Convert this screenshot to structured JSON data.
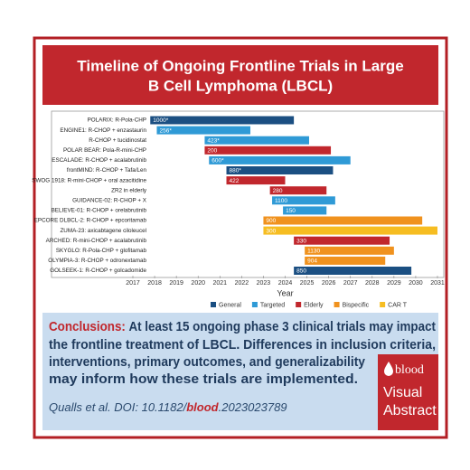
{
  "header": {
    "title_lines": [
      "Timeline of Ongoing Frontline Trials in Large",
      "B Cell Lymphoma (LBCL)"
    ]
  },
  "chart_data": {
    "type": "gantt",
    "xlabel": "Year",
    "xlim": [
      2017,
      2031
    ],
    "xticks": [
      2017,
      2018,
      2019,
      2020,
      2021,
      2022,
      2023,
      2024,
      2025,
      2026,
      2027,
      2028,
      2029,
      2030,
      2031
    ],
    "series": [
      {
        "name": "General",
        "color": "#1b4f82"
      },
      {
        "name": "Targeted",
        "color": "#2f9ad6"
      },
      {
        "name": "Elderly",
        "color": "#c1272d"
      },
      {
        "name": "Bispecific",
        "color": "#f0921e"
      },
      {
        "name": "CAR T",
        "color": "#f6bd22"
      }
    ],
    "categories": [
      "POLARIX: R-Pola-CHP",
      "ENGINE1: R-CHOP + enzastaurin",
      "R-CHOP + tucidinostat",
      "POLAR BEAR: Pola-R-mini-CHP",
      "ESCALADE: R-CHOP + acalabrutinib",
      "frontMIND: R-CHOP + Tafa/Len",
      "SWOG 1918: R-mini-CHOP + oral azacitidine",
      "ZR2 in elderly",
      "GUIDANCE-02: R-CHOP + X",
      "BELIEVE-01: R-CHOP + orelabrutinib",
      "EPCORE DLBCL-2: R-CHOP + epcoritamab",
      "ZUMA-23: axicabtagene ciloleucel",
      "ARCHED: R-mini-CHOP + acalabrutinib",
      "SKYGLO: R-Pola-CHP + glofitamab",
      "OLYMPIA-3: R-CHOP + odronextamab",
      "GOLSEEK-1: R-CHOP + golcadomide"
    ],
    "groups": [
      "General",
      "Targeted",
      "Targeted",
      "Elderly",
      "Targeted",
      "General",
      "Elderly",
      "Elderly",
      "Targeted",
      "Targeted",
      "Bispecific",
      "CAR T",
      "Elderly",
      "Bispecific",
      "Bispecific",
      "General"
    ],
    "start": [
      2017.8,
      2018.1,
      2020.3,
      2020.3,
      2020.5,
      2021.3,
      2021.3,
      2023.3,
      2023.4,
      2023.9,
      2023.0,
      2023.0,
      2024.4,
      2024.9,
      2024.9,
      2024.4
    ],
    "end": [
      2024.4,
      2022.4,
      2025.1,
      2026.1,
      2027.0,
      2026.2,
      2024.0,
      2025.9,
      2026.3,
      2025.9,
      2030.3,
      2031.0,
      2028.8,
      2029.0,
      2028.6,
      2029.8
    ],
    "value_labels": [
      "1000*",
      "256*",
      "423*",
      "200",
      "600*",
      "880*",
      "422",
      "280",
      "1100",
      "150",
      "900",
      "300",
      "330",
      "1130",
      "904",
      "850"
    ]
  },
  "conclusions": {
    "label": "Conclusions:",
    "lines": [
      "At least 15 ongoing phase 3 clinical trials may impact",
      "the frontline treatment of LBCL. Differences in inclusion criteria,",
      "interventions, primary outcomes, and generalizability",
      "may inform how these trials are implemented."
    ]
  },
  "citation": {
    "prefix": "Qualls et al. DOI: 10.1182/",
    "emphasis": "blood",
    "suffix": ".2023023789"
  },
  "logo": {
    "brand": "blood",
    "line1": "Visual",
    "line2": "Abstract"
  }
}
